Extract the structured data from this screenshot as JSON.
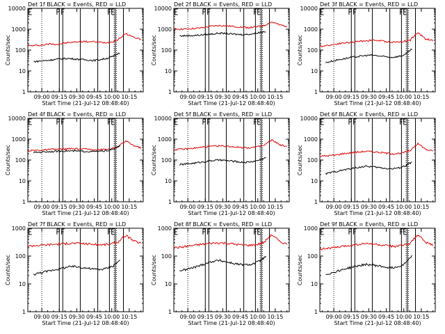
{
  "chart_data": [
    {
      "type": "line",
      "title": "Det 1f BLACK = Events, RED = LLD",
      "xlabel": "Start Time (21-Jul-12 08:48:40)",
      "ylabel": "Counts/sec",
      "yscale": "log",
      "ylim": [
        1,
        10000
      ],
      "x_ticks": [
        "09:00",
        "09:15",
        "09:30",
        "09:45",
        "10:00",
        "10:15"
      ],
      "y_ticks": [
        "1",
        "10",
        "100",
        "1000",
        "10000"
      ],
      "series": [
        {
          "color": "#e00000",
          "values": [
            160,
            165,
            175,
            200,
            190,
            220,
            240,
            260,
            255,
            250,
            230,
            240,
            320,
            600,
            420,
            330
          ]
        },
        {
          "color": "#000000",
          "values": [
            28,
            30,
            32,
            35,
            38,
            40,
            38,
            36,
            34,
            32,
            35,
            40,
            50,
            75
          ]
        }
      ]
    },
    {
      "type": "line",
      "title": "Det 2f BLACK = Events, RED = LLD",
      "xlabel": "Start Time (21-Jul-12 08:48:40)",
      "ylabel": "Counts/sec",
      "yscale": "log",
      "ylim": [
        1,
        10000
      ],
      "x_ticks": [
        "09:00",
        "09:15",
        "09:30",
        "09:45",
        "10:00",
        "10:15"
      ],
      "y_ticks": [
        "1",
        "10",
        "100",
        "1000",
        "10000"
      ],
      "series": [
        {
          "color": "#e00000",
          "values": [
            1000,
            1020,
            1050,
            1100,
            1200,
            1400,
            1500,
            1450,
            1350,
            1250,
            1200,
            1300,
            1500,
            2200,
            1600,
            1400
          ]
        },
        {
          "color": "#000000",
          "values": [
            480,
            490,
            500,
            520,
            560,
            600,
            650,
            620,
            580,
            560,
            560,
            600,
            700,
            800
          ]
        }
      ]
    },
    {
      "type": "line",
      "title": "Det 3f BLACK = Events, RED = LLD",
      "xlabel": "Start Time (21-Jul-12 08:48:40)",
      "ylabel": "Counts/sec",
      "yscale": "log",
      "ylim": [
        1,
        10000
      ],
      "x_ticks": [
        "09:00",
        "09:15",
        "09:30",
        "09:45",
        "10:00",
        "10:15"
      ],
      "y_ticks": [
        "1",
        "10",
        "100",
        "1000",
        "10000"
      ],
      "series": [
        {
          "color": "#e00000",
          "values": [
            150,
            170,
            190,
            220,
            230,
            260,
            280,
            300,
            280,
            250,
            240,
            260,
            300,
            650,
            350,
            280
          ]
        },
        {
          "color": "#000000",
          "values": [
            25,
            30,
            35,
            40,
            45,
            50,
            55,
            58,
            52,
            48,
            45,
            50,
            60,
            110
          ]
        }
      ]
    },
    {
      "type": "line",
      "title": "Det 4f BLACK = Events, RED = LLD",
      "xlabel": "Start Time (21-Jul-12 08:48:40)",
      "ylabel": "Counts/sec",
      "yscale": "log",
      "ylim": [
        1,
        10000
      ],
      "x_ticks": [
        "09:00",
        "09:15",
        "09:30",
        "09:45",
        "10:00",
        "10:15"
      ],
      "y_ticks": [
        "1",
        "10",
        "100",
        "1000",
        "10000"
      ],
      "series": [
        {
          "color": "#e00000",
          "values": [
            280,
            290,
            300,
            320,
            330,
            340,
            345,
            340,
            330,
            320,
            320,
            340,
            420,
            800,
            500,
            380
          ]
        },
        {
          "color": "#000000",
          "values": [
            230,
            240,
            250,
            260,
            270,
            275,
            270,
            265,
            260,
            255,
            260,
            280,
            330,
            480
          ]
        }
      ]
    },
    {
      "type": "line",
      "title": "Det 5f BLACK = Events, RED = LLD",
      "xlabel": "Start Time (21-Jul-12 08:48:40)",
      "ylabel": "Counts/sec",
      "yscale": "log",
      "ylim": [
        1,
        10000
      ],
      "x_ticks": [
        "09:00",
        "09:15",
        "09:30",
        "09:45",
        "10:00",
        "10:15"
      ],
      "y_ticks": [
        "1",
        "10",
        "100",
        "1000",
        "10000"
      ],
      "series": [
        {
          "color": "#e00000",
          "values": [
            320,
            330,
            350,
            380,
            420,
            450,
            480,
            460,
            430,
            400,
            390,
            420,
            500,
            900,
            550,
            420
          ]
        },
        {
          "color": "#000000",
          "values": [
            60,
            65,
            70,
            78,
            85,
            95,
            100,
            95,
            88,
            80,
            78,
            85,
            100,
            130
          ]
        }
      ]
    },
    {
      "type": "line",
      "title": "Det 6f BLACK = Events, RED = LLD",
      "xlabel": "Start Time (21-Jul-12 08:48:40)",
      "ylabel": "Counts/sec",
      "yscale": "log",
      "ylim": [
        1,
        10000
      ],
      "x_ticks": [
        "09:00",
        "09:15",
        "09:30",
        "09:45",
        "10:00",
        "10:15"
      ],
      "y_ticks": [
        "1",
        "10",
        "100",
        "1000",
        "10000"
      ],
      "series": [
        {
          "color": "#e00000",
          "values": [
            150,
            160,
            170,
            200,
            220,
            240,
            260,
            250,
            230,
            210,
            200,
            220,
            280,
            600,
            330,
            260
          ]
        },
        {
          "color": "#000000",
          "values": [
            22,
            26,
            30,
            35,
            40,
            45,
            50,
            48,
            44,
            40,
            38,
            42,
            52,
            80
          ]
        }
      ]
    },
    {
      "type": "line",
      "title": "Det 7f BLACK = Events, RED = LLD",
      "xlabel": "Start Time (21-Jul-12 08:48:40)",
      "ylabel": "Counts/sec",
      "yscale": "log",
      "ylim": [
        1,
        1000
      ],
      "x_ticks": [
        "09:00",
        "09:15",
        "09:30",
        "09:45",
        "10:00",
        "10:15"
      ],
      "y_ticks": [
        "1",
        "10",
        "100",
        "1000"
      ],
      "series": [
        {
          "color": "#e00000",
          "values": [
            230,
            240,
            250,
            260,
            270,
            280,
            290,
            285,
            275,
            260,
            255,
            270,
            320,
            550,
            350,
            290
          ]
        },
        {
          "color": "#000000",
          "values": [
            22,
            25,
            28,
            32,
            35,
            40,
            42,
            40,
            37,
            34,
            33,
            36,
            45,
            70
          ]
        }
      ]
    },
    {
      "type": "line",
      "title": "Det 8f BLACK = Events, RED = LLD",
      "xlabel": "Start Time (21-Jul-12 08:48:40)",
      "ylabel": "Counts/sec",
      "yscale": "log",
      "ylim": [
        1,
        1000
      ],
      "x_ticks": [
        "09:00",
        "09:15",
        "09:30",
        "09:45",
        "10:00",
        "10:15"
      ],
      "y_ticks": [
        "1",
        "10",
        "100",
        "1000"
      ],
      "series": [
        {
          "color": "#e00000",
          "values": [
            200,
            210,
            230,
            250,
            270,
            290,
            300,
            290,
            270,
            250,
            245,
            260,
            310,
            580,
            330,
            270
          ]
        },
        {
          "color": "#000000",
          "values": [
            30,
            33,
            38,
            45,
            55,
            65,
            70,
            62,
            55,
            50,
            48,
            52,
            65,
            95
          ]
        }
      ]
    },
    {
      "type": "line",
      "title": "Det 9f BLACK = Events, RED = LLD",
      "xlabel": "Start Time (21-Jul-12 08:48:40)",
      "ylabel": "Counts/sec",
      "yscale": "log",
      "ylim": [
        1,
        1000
      ],
      "x_ticks": [
        "09:00",
        "09:15",
        "09:30",
        "09:45",
        "10:00",
        "10:15"
      ],
      "y_ticks": [
        "1",
        "10",
        "100",
        "1000"
      ],
      "series": [
        {
          "color": "#e00000",
          "values": [
            180,
            190,
            200,
            220,
            240,
            260,
            280,
            270,
            250,
            230,
            225,
            240,
            290,
            550,
            310,
            250
          ]
        },
        {
          "color": "#000000",
          "values": [
            22,
            25,
            30,
            35,
            40,
            45,
            50,
            48,
            44,
            40,
            38,
            42,
            55,
            100
          ]
        }
      ]
    }
  ]
}
